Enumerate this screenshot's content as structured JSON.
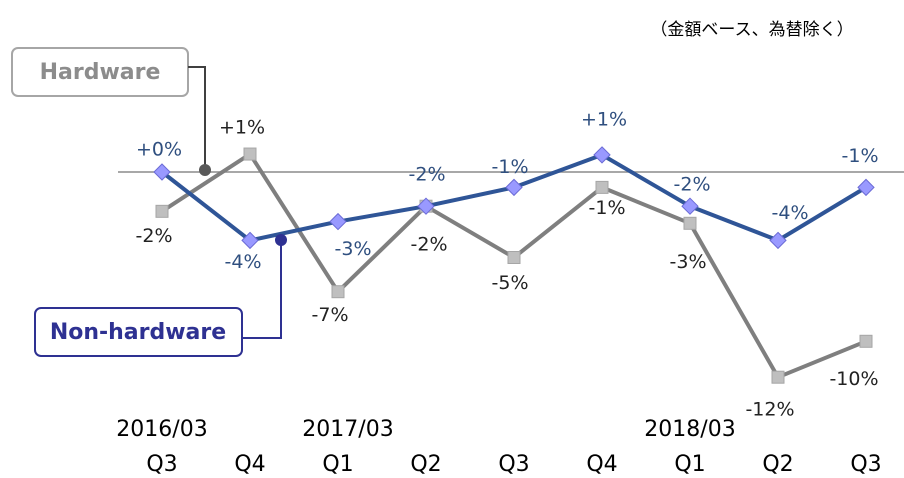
{
  "chart_data": {
    "type": "line",
    "note": "（金額ベース、為替除く）",
    "categories": [
      "Q3",
      "Q4",
      "Q1",
      "Q2",
      "Q3",
      "Q4",
      "Q1",
      "Q2",
      "Q3"
    ],
    "period_labels": [
      "2016/03",
      null,
      "2017/03",
      null,
      null,
      null,
      "2018/03",
      null,
      null
    ],
    "ylim": [
      -13,
      3
    ],
    "series": [
      {
        "name": "Hardware",
        "color": "#7f7f7f",
        "marker_color": "#bfbfbf",
        "label_color": "#222222",
        "values": [
          -2.3,
          1.05,
          -7.0,
          -2.0,
          -5.0,
          -0.9,
          -3.0,
          -12.0,
          -9.9
        ],
        "value_labels": [
          "-2%",
          "+1%",
          "-7%",
          "-2%",
          "-5%",
          "-1%",
          "-3%",
          "-12%",
          "-10%"
        ]
      },
      {
        "name": "Non-hardware",
        "color": "#2f5597",
        "marker_color": "#9999ff",
        "label_color": "#2f4f7f",
        "values": [
          0,
          -4.0,
          -2.9,
          -2.0,
          -0.9,
          1.0,
          -2.0,
          -4.0,
          -0.9
        ],
        "value_labels": [
          "+0%",
          "-4%",
          "-3%",
          "-2%",
          "-1%",
          "+1%",
          "-2%",
          "-4%",
          "-1%"
        ]
      }
    ]
  }
}
